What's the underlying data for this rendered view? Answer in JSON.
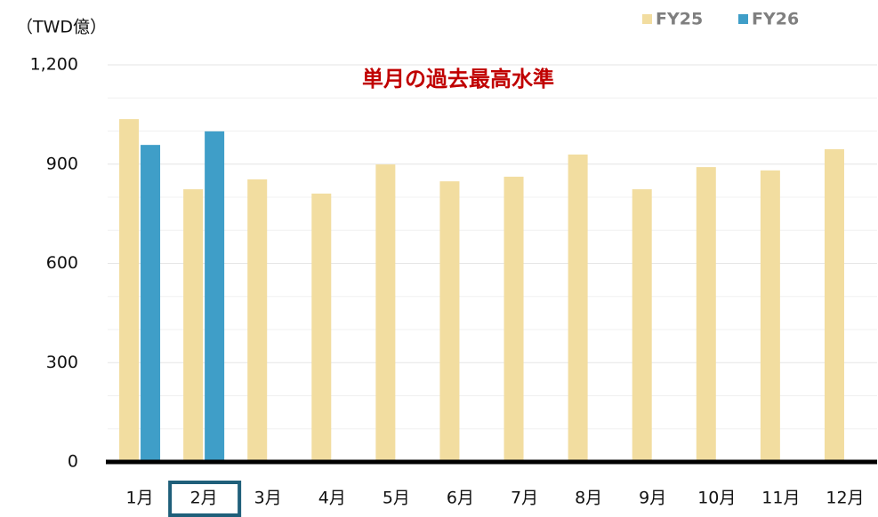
{
  "chart_data": {
    "type": "bar",
    "unit_label": "（TWD億）",
    "annotation": "単月の過去最高水準",
    "categories": [
      "1月",
      "2月",
      "3月",
      "4月",
      "5月",
      "6月",
      "7月",
      "8月",
      "9月",
      "10月",
      "11月",
      "12月"
    ],
    "highlight_category": 1,
    "series": [
      {
        "name": "FY25",
        "color": "#f2dda0",
        "values": [
          1036,
          824,
          854,
          811,
          899,
          848,
          862,
          929,
          824,
          891,
          881,
          945
        ]
      },
      {
        "name": "FY26",
        "color": "#3f9ec8",
        "values": [
          958,
          999,
          null,
          null,
          null,
          null,
          null,
          null,
          null,
          null,
          null,
          null
        ]
      }
    ],
    "ylim": [
      0,
      1200
    ],
    "yticks": [
      0,
      300,
      600,
      900,
      {
        "value": 1200,
        "label": "1,200"
      }
    ],
    "minor_grid": [
      100,
      200,
      400,
      500,
      700,
      800,
      1000,
      1100
    ],
    "grid": true,
    "legend": "top-right"
  }
}
